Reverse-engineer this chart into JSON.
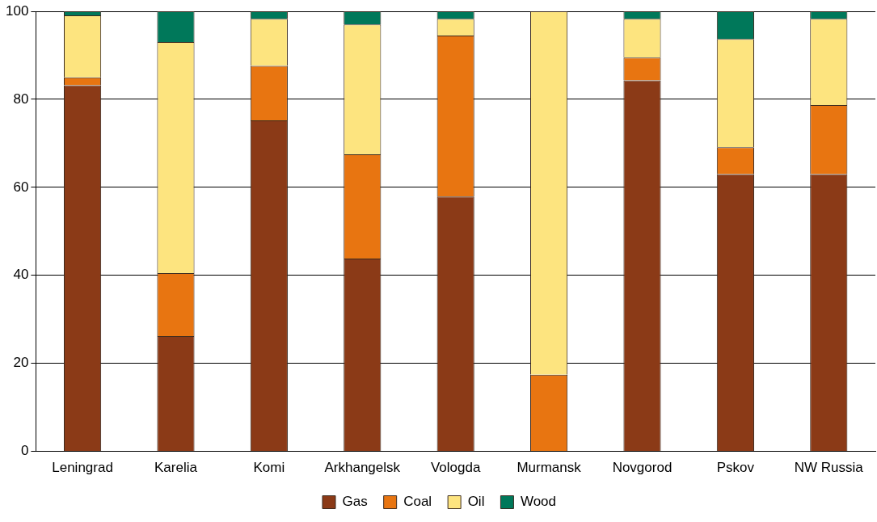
{
  "chart_data": {
    "type": "bar",
    "stacked": true,
    "categories": [
      "Leningrad",
      "Karelia",
      "Komi",
      "Arkhangelsk",
      "Vologda",
      "Murmansk",
      "Novgorod",
      "Pskov",
      "NW Russia"
    ],
    "series": [
      {
        "name": "Gas",
        "color": "#8b3a17",
        "values": [
          83.2,
          26.2,
          75.2,
          43.8,
          57.9,
          0,
          84.3,
          63.0,
          63.0
        ]
      },
      {
        "name": "Coal",
        "color": "#e87511",
        "values": [
          1.8,
          14.3,
          12.4,
          23.7,
          36.6,
          17.4,
          5.2,
          6.1,
          15.7
        ]
      },
      {
        "name": "Oil",
        "color": "#fde47f",
        "values": [
          14.1,
          52.5,
          10.7,
          29.5,
          3.8,
          82.6,
          8.8,
          24.6,
          19.6
        ]
      },
      {
        "name": "Wood",
        "color": "#00785a",
        "values": [
          0.9,
          7.0,
          1.7,
          3.0,
          1.7,
          0,
          1.7,
          6.3,
          1.7
        ]
      }
    ],
    "ylim": [
      0,
      100
    ],
    "yticks": [
      0,
      20,
      40,
      60,
      80,
      100
    ],
    "grid": "y",
    "legend": "bottom"
  }
}
